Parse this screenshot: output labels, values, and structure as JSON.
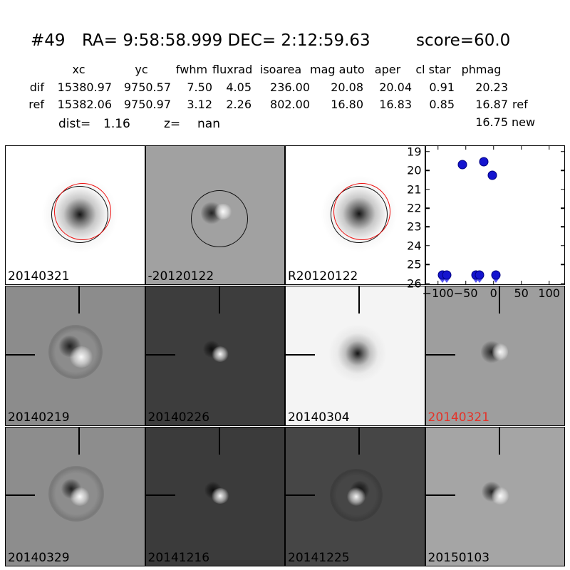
{
  "header": {
    "id": "#49",
    "coords": "RA= 9:58:58.999 DEC= 2:12:59.63",
    "score": "score=60.0"
  },
  "photometry_table": {
    "columns": [
      "xc",
      "yc",
      "fwhm",
      "fluxrad",
      "isoarea",
      "mag auto",
      "aper",
      "cl star",
      "phmag"
    ],
    "rows": [
      {
        "label": "dif",
        "values": [
          "15380.97",
          "9750.57",
          "7.50",
          "4.05",
          "236.00",
          "20.08",
          "20.04",
          "0.91",
          "20.23"
        ],
        "suffix": ""
      },
      {
        "label": "ref",
        "values": [
          "15382.06",
          "9750.97",
          "3.12",
          "2.26",
          "802.00",
          "16.80",
          "16.83",
          "0.85",
          "16.87"
        ],
        "suffix": "ref"
      }
    ],
    "extra_phmag": {
      "value": "16.75",
      "suffix": "new"
    }
  },
  "info_line": {
    "dist_label": "dist=",
    "dist_value": "1.16",
    "z_label": "z=",
    "z_value": "nan"
  },
  "cutouts": [
    {
      "label": "20140321",
      "label_color": "#000000",
      "bg": "#ffffff"
    },
    {
      "label": "-20120122",
      "label_color": "#000000",
      "bg": "#a1a1a1"
    },
    {
      "label": "R20120122",
      "label_color": "#000000",
      "bg": "#ffffff"
    },
    {
      "label": "20140219",
      "label_color": "#000000",
      "bg": "#8c8c8c"
    },
    {
      "label": "20140226",
      "label_color": "#000000",
      "bg": "#3d3d3d"
    },
    {
      "label": "20140304",
      "label_color": "#000000",
      "bg": "#f4f4f4"
    },
    {
      "label": "20140321",
      "label_color": "#e53228",
      "bg": "#9e9e9e"
    },
    {
      "label": "20140329",
      "label_color": "#000000",
      "bg": "#8d8d8d"
    },
    {
      "label": "20141216",
      "label_color": "#000000",
      "bg": "#3b3b3b"
    },
    {
      "label": "20141225",
      "label_color": "#000000",
      "bg": "#464646"
    },
    {
      "label": "20150103",
      "label_color": "#000000",
      "bg": "#a5a5a5"
    }
  ],
  "chart_data": {
    "type": "scatter",
    "title": "",
    "xlabel": "",
    "ylabel": "",
    "points": [
      {
        "x": -56,
        "y": 19.67,
        "limit": false
      },
      {
        "x": -18,
        "y": 19.52,
        "limit": false
      },
      {
        "x": -1.5,
        "y": 20.26,
        "limit": false
      },
      {
        "x": -92,
        "y": 25.55,
        "limit": true
      },
      {
        "x": -84,
        "y": 25.55,
        "limit": true
      },
      {
        "x": -32,
        "y": 25.55,
        "limit": true
      },
      {
        "x": -25,
        "y": 25.55,
        "limit": true
      },
      {
        "x": 4,
        "y": 25.55,
        "limit": true
      }
    ],
    "marker_color": "#1414cf",
    "marker_edge": "#000080",
    "xlim": [
      -122,
      128
    ],
    "ylim_top_to_bottom": [
      18.7,
      26.05
    ],
    "y_axis_inverted": true,
    "xticks": [
      -100,
      -50,
      0,
      50,
      100
    ],
    "xtick_labels": [
      "−100",
      "−50",
      "0",
      "50",
      "100"
    ],
    "yticks": [
      19,
      20,
      21,
      22,
      23,
      24,
      25,
      26
    ],
    "grid": false,
    "legend": null
  }
}
